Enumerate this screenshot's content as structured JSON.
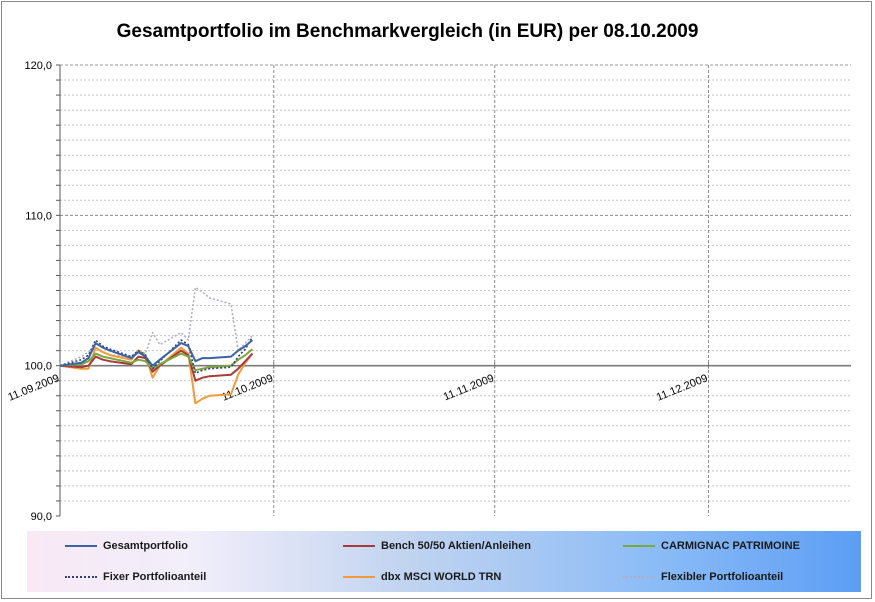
{
  "chart_data": {
    "type": "line",
    "title": "Gesamtportfolio  im Benchmarkvergleich (in EUR) per 08.10.2009",
    "xlabel": "",
    "ylabel": "",
    "ylim": [
      90,
      120
    ],
    "yticks": [
      {
        "value": 120,
        "label": "120,0"
      },
      {
        "value": 110,
        "label": "110,0"
      },
      {
        "value": 100,
        "label": "100,0"
      },
      {
        "value": 90,
        "label": "90,0"
      }
    ],
    "x_axis": {
      "type": "date",
      "range": [
        "2009-09-11",
        "2009-12-31"
      ],
      "ticks": [
        {
          "date": "2009-09-11",
          "label": "11.09.2009"
        },
        {
          "date": "2009-10-11",
          "label": "11.10.2009"
        },
        {
          "date": "2009-11-11",
          "label": "11.11.2009"
        },
        {
          "date": "2009-12-11",
          "label": "11.12.2009"
        }
      ]
    },
    "x": [
      "2009-09-11",
      "2009-09-14",
      "2009-09-15",
      "2009-09-16",
      "2009-09-17",
      "2009-09-18",
      "2009-09-21",
      "2009-09-22",
      "2009-09-23",
      "2009-09-24",
      "2009-09-25",
      "2009-09-28",
      "2009-09-29",
      "2009-09-30",
      "2009-10-01",
      "2009-10-02",
      "2009-10-05",
      "2009-10-06",
      "2009-10-07",
      "2009-10-08"
    ],
    "series": [
      {
        "name": "Gesamtportfolio",
        "color": "#3a64a8",
        "dash": "solid",
        "values": [
          100.0,
          100.2,
          100.5,
          101.5,
          101.2,
          101.0,
          100.5,
          100.9,
          100.6,
          100.0,
          100.4,
          101.5,
          101.3,
          100.3,
          100.5,
          100.5,
          100.6,
          101.0,
          101.3,
          101.7
        ]
      },
      {
        "name": "Bench 50/50 Aktien/Anleihen",
        "color": "#a83a3a",
        "dash": "solid",
        "values": [
          100.0,
          99.9,
          100.0,
          100.6,
          100.4,
          100.3,
          100.1,
          100.6,
          100.5,
          99.6,
          100.0,
          101.0,
          100.7,
          99.0,
          99.2,
          99.3,
          99.4,
          99.8,
          100.3,
          100.8
        ]
      },
      {
        "name": "CARMIGNAC PATRIMOINE",
        "color": "#7aa83a",
        "dash": "solid",
        "values": [
          100.0,
          100.1,
          100.3,
          100.8,
          100.6,
          100.5,
          100.2,
          100.4,
          100.3,
          99.8,
          100.1,
          100.8,
          100.6,
          99.7,
          99.8,
          99.9,
          100.0,
          100.4,
          100.7,
          101.1
        ]
      },
      {
        "name": "Fixer Portfolioanteil",
        "color": "#303f7a",
        "dash": "dot",
        "values": [
          100.0,
          100.4,
          100.7,
          101.7,
          101.3,
          101.1,
          100.6,
          101.0,
          100.7,
          99.8,
          100.3,
          101.7,
          101.4,
          99.5,
          99.7,
          99.8,
          99.9,
          100.6,
          101.1,
          101.9
        ]
      },
      {
        "name": "dbx MSCI WORLD TRN",
        "color": "#f29a3a",
        "dash": "solid",
        "values": [
          100.0,
          99.8,
          99.8,
          101.2,
          100.9,
          100.7,
          100.4,
          101.0,
          100.7,
          99.2,
          100.0,
          101.2,
          100.8,
          97.5,
          97.8,
          98.0,
          98.1,
          99.4,
          100.2,
          100.8
        ]
      },
      {
        "name": "Flexibler Portfolioanteil",
        "color": "#b0b0bc",
        "dash": "dot",
        "values": [
          100.0,
          100.6,
          100.9,
          101.2,
          100.9,
          100.7,
          100.6,
          101.0,
          100.8,
          102.2,
          101.4,
          102.2,
          101.7,
          105.2,
          104.9,
          104.5,
          104.1,
          101.0,
          101.5,
          102.0
        ]
      }
    ],
    "grid": true,
    "legend_position": "bottom"
  }
}
